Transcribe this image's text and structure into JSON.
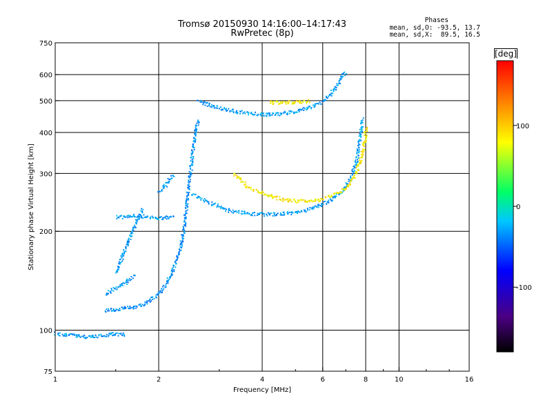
{
  "header": {
    "title_line1": "Tromsø 20150930 14:16:00–14:17:43",
    "title_line2": "RwPretec (8p)",
    "stats_title": "Phases",
    "stats_o": "mean, sd,O: -93.5, 13.7",
    "stats_x": "mean, sd,X:  89.5, 16.5"
  },
  "colorbar": {
    "unit": "[deg]",
    "min": -180,
    "max": 180,
    "ticks": [
      {
        "value": 100,
        "label": "100"
      },
      {
        "value": 0,
        "label": "0"
      },
      {
        "value": -100,
        "label": "-100"
      }
    ]
  },
  "chart_data": {
    "type": "scatter",
    "xlabel": "Frequency [MHz]",
    "ylabel": "Stationary phase Virtual Height [km]",
    "x_scale": "log",
    "y_scale": "log",
    "xlim": [
      1,
      16
    ],
    "ylim": [
      75,
      750
    ],
    "x_ticks": [
      {
        "value": 1,
        "label": "1"
      },
      {
        "value": 2,
        "label": "2"
      },
      {
        "value": 4,
        "label": "4"
      },
      {
        "value": 6,
        "label": "6"
      },
      {
        "value": 8,
        "label": "8"
      },
      {
        "value": 10,
        "label": "10"
      },
      {
        "value": 16,
        "label": "16"
      }
    ],
    "y_ticks": [
      {
        "value": 75,
        "label": "75"
      },
      {
        "value": 100,
        "label": "100"
      },
      {
        "value": 200,
        "label": "200"
      },
      {
        "value": 300,
        "label": "300"
      },
      {
        "value": 400,
        "label": "400"
      },
      {
        "value": 500,
        "label": "500"
      },
      {
        "value": 600,
        "label": "600"
      },
      {
        "value": 750,
        "label": "750"
      }
    ],
    "grid_x": [
      2,
      4,
      6,
      8,
      10
    ],
    "grid_y": [
      100,
      200,
      300,
      400,
      500,
      600
    ],
    "grid": true,
    "traces": [
      {
        "points": [
          [
            1.0,
            98
          ],
          [
            1.1,
            97
          ],
          [
            1.2,
            96
          ],
          [
            1.3,
            96
          ],
          [
            1.4,
            97
          ],
          [
            1.5,
            98
          ],
          [
            1.6,
            97
          ]
        ],
        "phase": -100
      },
      {
        "points": [
          [
            1.4,
            115
          ],
          [
            1.55,
            117
          ],
          [
            1.7,
            118
          ],
          [
            1.85,
            122
          ],
          [
            2.0,
            130
          ],
          [
            2.1,
            140
          ],
          [
            2.2,
            155
          ],
          [
            2.3,
            175
          ],
          [
            2.35,
            200
          ],
          [
            2.4,
            240
          ],
          [
            2.45,
            290
          ],
          [
            2.5,
            350
          ],
          [
            2.55,
            410
          ],
          [
            2.6,
            440
          ]
        ],
        "phase": -105
      },
      {
        "points": [
          [
            1.4,
            130
          ],
          [
            1.5,
            135
          ],
          [
            1.6,
            140
          ],
          [
            1.7,
            148
          ]
        ],
        "phase": -100
      },
      {
        "points": [
          [
            1.5,
            150
          ],
          [
            1.55,
            165
          ],
          [
            1.6,
            180
          ],
          [
            1.65,
            195
          ],
          [
            1.7,
            210
          ],
          [
            1.75,
            225
          ],
          [
            1.8,
            235
          ]
        ],
        "phase": -100
      },
      {
        "points": [
          [
            1.5,
            222
          ],
          [
            1.6,
            222
          ],
          [
            1.7,
            224
          ],
          [
            1.8,
            223
          ],
          [
            1.9,
            222
          ],
          [
            2.0,
            221
          ],
          [
            2.1,
            221
          ],
          [
            2.2,
            222
          ]
        ],
        "phase": -100
      },
      {
        "points": [
          [
            2.0,
            265
          ],
          [
            2.1,
            280
          ],
          [
            2.2,
            300
          ]
        ],
        "phase": -100
      },
      {
        "points": [
          [
            2.5,
            260
          ],
          [
            2.8,
            245
          ],
          [
            3.2,
            232
          ],
          [
            3.7,
            227
          ],
          [
            4.2,
            226
          ],
          [
            4.8,
            228
          ],
          [
            5.3,
            232
          ],
          [
            5.8,
            240
          ],
          [
            6.3,
            250
          ],
          [
            6.8,
            265
          ],
          [
            7.2,
            290
          ],
          [
            7.5,
            330
          ],
          [
            7.7,
            400
          ],
          [
            7.8,
            445
          ]
        ],
        "phase": -100
      },
      {
        "points": [
          [
            2.6,
            500
          ],
          [
            3.0,
            475
          ],
          [
            3.5,
            462
          ],
          [
            4.0,
            455
          ],
          [
            4.5,
            458
          ],
          [
            5.0,
            465
          ],
          [
            5.5,
            480
          ],
          [
            6.0,
            500
          ],
          [
            6.3,
            525
          ],
          [
            6.6,
            560
          ],
          [
            6.8,
            600
          ],
          [
            7.0,
            610
          ]
        ],
        "phase": -100
      },
      {
        "points": [
          [
            3.3,
            300
          ],
          [
            3.6,
            275
          ],
          [
            4.0,
            262
          ],
          [
            4.5,
            252
          ],
          [
            5.0,
            248
          ],
          [
            5.5,
            248
          ],
          [
            6.0,
            252
          ],
          [
            6.5,
            260
          ],
          [
            7.0,
            272
          ],
          [
            7.4,
            295
          ],
          [
            7.7,
            330
          ],
          [
            7.9,
            370
          ],
          [
            8.0,
            420
          ]
        ],
        "phase": 100
      },
      {
        "points": [
          [
            4.2,
            495
          ],
          [
            4.6,
            495
          ],
          [
            5.0,
            497
          ],
          [
            5.5,
            500
          ]
        ],
        "phase": 100
      }
    ]
  }
}
